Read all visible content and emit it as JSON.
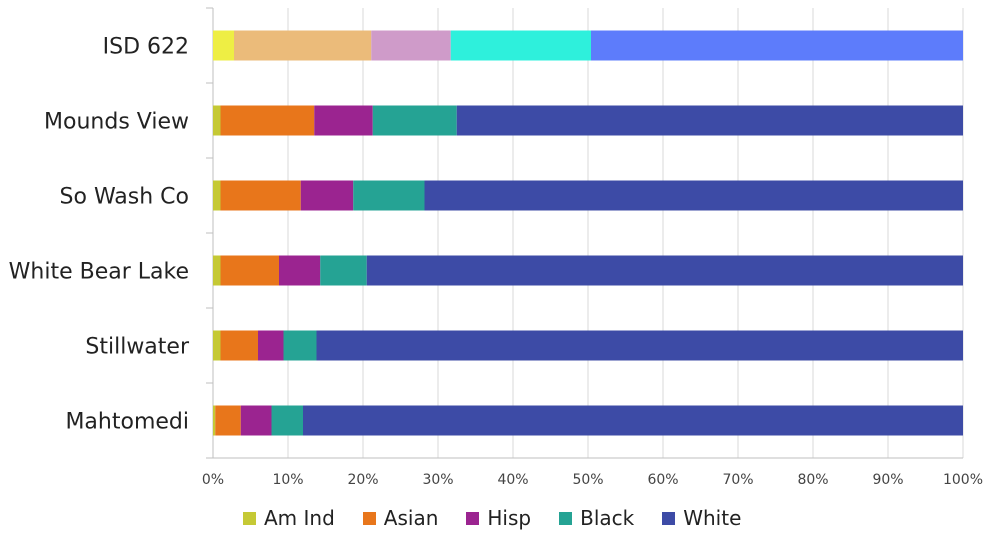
{
  "chart_data": {
    "type": "bar",
    "orientation": "horizontal",
    "stacked": true,
    "categories": [
      "ISD 622",
      "Mounds View",
      "So Wash Co",
      "White Bear Lake",
      "Stillwater",
      "Mahtomedi"
    ],
    "series": [
      {
        "name": "Am Ind",
        "color": "#c5c935",
        "values": [
          0.0,
          1.0,
          1.0,
          1.0,
          1.0,
          0.3
        ]
      },
      {
        "name": "Asian",
        "color": "#e8761b",
        "values": [
          0.0,
          12.5,
          10.7,
          7.8,
          5.0,
          3.4
        ]
      },
      {
        "name": "Hisp",
        "color": "#9b2490",
        "values": [
          0.0,
          7.8,
          7.0,
          5.5,
          3.4,
          4.1
        ]
      },
      {
        "name": "Black",
        "color": "#25a394",
        "values": [
          0.0,
          11.2,
          9.5,
          6.2,
          4.4,
          4.2
        ]
      },
      {
        "name": "White",
        "color": "#3d4ba6",
        "values": [
          0.0,
          67.5,
          71.8,
          79.5,
          86.2,
          88.0
        ]
      }
    ],
    "highlight": {
      "category": "ISD 622",
      "colors": [
        "#eeee44",
        "#ebbb7a",
        "#cf9bc9",
        "#2ef0dc",
        "#5d7cfb"
      ],
      "values": [
        2.8,
        18.3,
        10.6,
        18.7,
        49.6
      ]
    },
    "xlim": [
      0,
      100
    ],
    "xticks": [
      "0%",
      "10%",
      "20%",
      "30%",
      "40%",
      "50%",
      "60%",
      "70%",
      "80%",
      "90%",
      "100%"
    ],
    "grid": true,
    "legend_position": "bottom"
  }
}
